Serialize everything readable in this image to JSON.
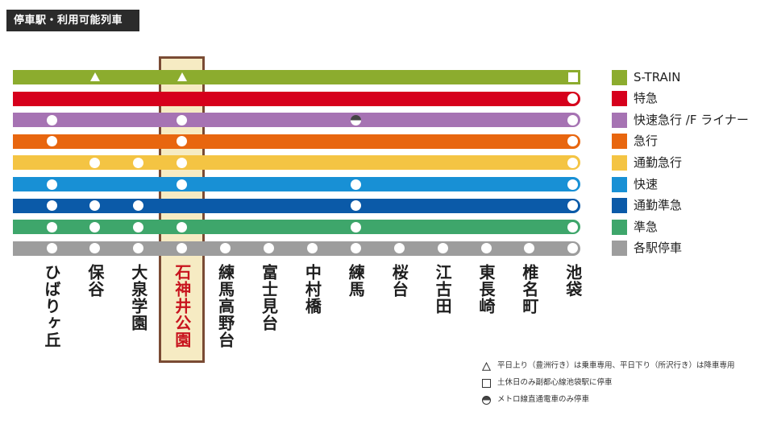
{
  "header": {
    "title": "停車駅・利用可能列車"
  },
  "stations": [
    {
      "name": "ひばりヶ丘",
      "highlighted": false
    },
    {
      "name": "保谷",
      "highlighted": false
    },
    {
      "name": "大泉学園",
      "highlighted": false
    },
    {
      "name": "石神井公園",
      "highlighted": true
    },
    {
      "name": "練馬高野台",
      "highlighted": false
    },
    {
      "name": "富士見台",
      "highlighted": false
    },
    {
      "name": "中村橋",
      "highlighted": false
    },
    {
      "name": "練馬",
      "highlighted": false
    },
    {
      "name": "桜台",
      "highlighted": false
    },
    {
      "name": "江古田",
      "highlighted": false
    },
    {
      "name": "東長崎",
      "highlighted": false
    },
    {
      "name": "椎名町",
      "highlighted": false
    },
    {
      "name": "池袋",
      "highlighted": false
    }
  ],
  "trains": [
    {
      "name": "S-TRAIN",
      "color": "#8cac2e",
      "stops": [
        null,
        "triangle",
        null,
        "triangle",
        null,
        null,
        null,
        null,
        null,
        null,
        null,
        null,
        "square"
      ]
    },
    {
      "name": "特急",
      "color": "#d6001c",
      "stops": [
        null,
        null,
        null,
        null,
        null,
        null,
        null,
        null,
        null,
        null,
        null,
        null,
        "circle"
      ]
    },
    {
      "name": "快速急行 /F ライナー",
      "color": "#a673b3",
      "stops": [
        "circle",
        null,
        null,
        "circle",
        null,
        null,
        null,
        "half-circle",
        null,
        null,
        null,
        null,
        "circle"
      ]
    },
    {
      "name": "急行",
      "color": "#e8660f",
      "stops": [
        "circle",
        null,
        null,
        "circle",
        null,
        null,
        null,
        null,
        null,
        null,
        null,
        null,
        "circle"
      ]
    },
    {
      "name": "通勤急行",
      "color": "#f4c443",
      "stops": [
        null,
        "circle",
        "circle",
        "circle",
        null,
        null,
        null,
        null,
        null,
        null,
        null,
        null,
        "circle"
      ]
    },
    {
      "name": "快速",
      "color": "#1890d5",
      "stops": [
        "circle",
        null,
        null,
        "circle",
        null,
        null,
        null,
        "circle",
        null,
        null,
        null,
        null,
        "circle"
      ]
    },
    {
      "name": "通勤準急",
      "color": "#0b5aa8",
      "stops": [
        "circle",
        "circle",
        "circle",
        null,
        null,
        null,
        null,
        "circle",
        null,
        null,
        null,
        null,
        "circle"
      ]
    },
    {
      "name": "準急",
      "color": "#3ea66b",
      "stops": [
        "circle",
        "circle",
        "circle",
        "circle",
        null,
        null,
        null,
        "circle",
        null,
        null,
        null,
        null,
        "circle"
      ]
    },
    {
      "name": "各駅停車",
      "color": "#9d9d9d",
      "stops": [
        "circle",
        "circle",
        "circle",
        "circle",
        "circle",
        "circle",
        "circle",
        "circle",
        "circle",
        "circle",
        "circle",
        "circle",
        "circle"
      ]
    }
  ],
  "notes": [
    {
      "symbol": "triangle-outline-icon",
      "text": "平日上り（豊洲行き）は乗車専用、平日下り（所沢行き）は降車専用"
    },
    {
      "symbol": "square-outline-icon",
      "text": "土休日のみ副都心線池袋駅に停車"
    },
    {
      "symbol": "half-circle-icon",
      "text": "メトロ線直通電車のみ停車"
    }
  ]
}
